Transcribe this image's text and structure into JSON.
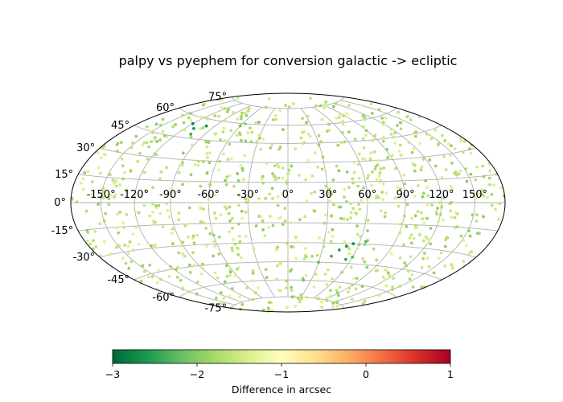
{
  "chart_data": {
    "type": "scatter",
    "projection": "aitoff/hammer all-sky",
    "title": "palpy vs pyephem for conversion galactic -> ecliptic",
    "lon_ticks": [
      "-150°",
      "-120°",
      "-90°",
      "-60°",
      "-30°",
      "0°",
      "30°",
      "60°",
      "90°",
      "120°",
      "150°"
    ],
    "lat_ticks": [
      "75°",
      "60°",
      "45°",
      "30°",
      "15°",
      "0°",
      "-15°",
      "-30°",
      "-45°",
      "-60°",
      "-75°"
    ],
    "lon_range_deg": [
      -180,
      180
    ],
    "lat_range_deg": [
      -90,
      90
    ],
    "grid": true,
    "colormap": "RdYlGn_r",
    "colorbar": {
      "label": "Difference in arcsec",
      "range": [
        -3,
        1
      ],
      "ticks": [
        "−3",
        "−2",
        "−1",
        "0",
        "1"
      ]
    },
    "points": [
      {
        "lon": -120,
        "lat": 55,
        "value": -2.8
      },
      {
        "lon": -110,
        "lat": 52,
        "value": -2.6
      },
      {
        "lon": -100,
        "lat": 55,
        "value": -2.7
      },
      {
        "lon": -105,
        "lat": 48,
        "value": -2.4
      },
      {
        "lon": -60,
        "lat": 58,
        "value": -2.2
      },
      {
        "lon": -40,
        "lat": 62,
        "value": -2.1
      },
      {
        "lon": -130,
        "lat": 40,
        "value": -2.0
      },
      {
        "lon": 50,
        "lat": -32,
        "value": -2.6
      },
      {
        "lon": 55,
        "lat": -30,
        "value": -2.7
      },
      {
        "lon": 45,
        "lat": -35,
        "value": -2.5
      },
      {
        "lon": 40,
        "lat": -40,
        "value": -2.4
      },
      {
        "lon": 60,
        "lat": -40,
        "value": -2.3
      },
      {
        "lon": 30,
        "lat": -45,
        "value": -2.2
      },
      {
        "lon": 65,
        "lat": -28,
        "value": -2.3
      },
      {
        "lon": 55,
        "lat": -42,
        "value": -2.5
      },
      {
        "lon": 20,
        "lat": -60,
        "value": -2.1
      },
      {
        "lon": 10,
        "lat": -75,
        "value": -2.0
      },
      {
        "lon": 35,
        "lat": -20,
        "value": -2.0
      }
    ],
    "background_scatter": {
      "count": 900,
      "value_range": [
        -2.0,
        -1.3
      ]
    }
  }
}
